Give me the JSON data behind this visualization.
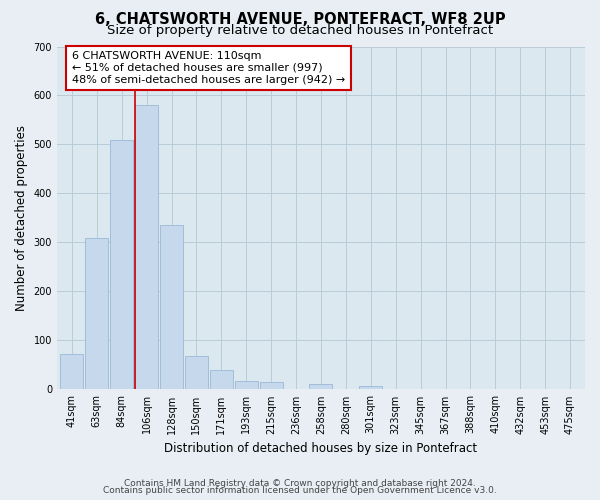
{
  "title": "6, CHATSWORTH AVENUE, PONTEFRACT, WF8 2UP",
  "subtitle": "Size of property relative to detached houses in Pontefract",
  "xlabel": "Distribution of detached houses by size in Pontefract",
  "ylabel": "Number of detached properties",
  "categories": [
    "41sqm",
    "63sqm",
    "84sqm",
    "106sqm",
    "128sqm",
    "150sqm",
    "171sqm",
    "193sqm",
    "215sqm",
    "236sqm",
    "258sqm",
    "280sqm",
    "301sqm",
    "323sqm",
    "345sqm",
    "367sqm",
    "388sqm",
    "410sqm",
    "432sqm",
    "453sqm",
    "475sqm"
  ],
  "values": [
    73,
    310,
    510,
    580,
    335,
    68,
    40,
    18,
    15,
    0,
    12,
    0,
    7,
    0,
    0,
    0,
    0,
    0,
    0,
    0,
    0
  ],
  "bar_color": "#c6d9ec",
  "bar_edge_color": "#9ab8d4",
  "highlight_index": 3,
  "highlight_line_color": "#cc0000",
  "annotation_text": "6 CHATSWORTH AVENUE: 110sqm\n← 51% of detached houses are smaller (997)\n48% of semi-detached houses are larger (942) →",
  "annotation_box_color": "#ffffff",
  "annotation_box_edge_color": "#cc0000",
  "ylim": [
    0,
    700
  ],
  "yticks": [
    0,
    100,
    200,
    300,
    400,
    500,
    600,
    700
  ],
  "footer_line1": "Contains HM Land Registry data © Crown copyright and database right 2024.",
  "footer_line2": "Contains public sector information licensed under the Open Government Licence v3.0.",
  "bg_color": "#e8eef4",
  "plot_bg_color": "#dce8f0",
  "title_fontsize": 10.5,
  "subtitle_fontsize": 9.5,
  "axis_label_fontsize": 8.5,
  "tick_fontsize": 7,
  "annotation_fontsize": 8,
  "footer_fontsize": 6.5,
  "grid_color": "#b8ccd8"
}
